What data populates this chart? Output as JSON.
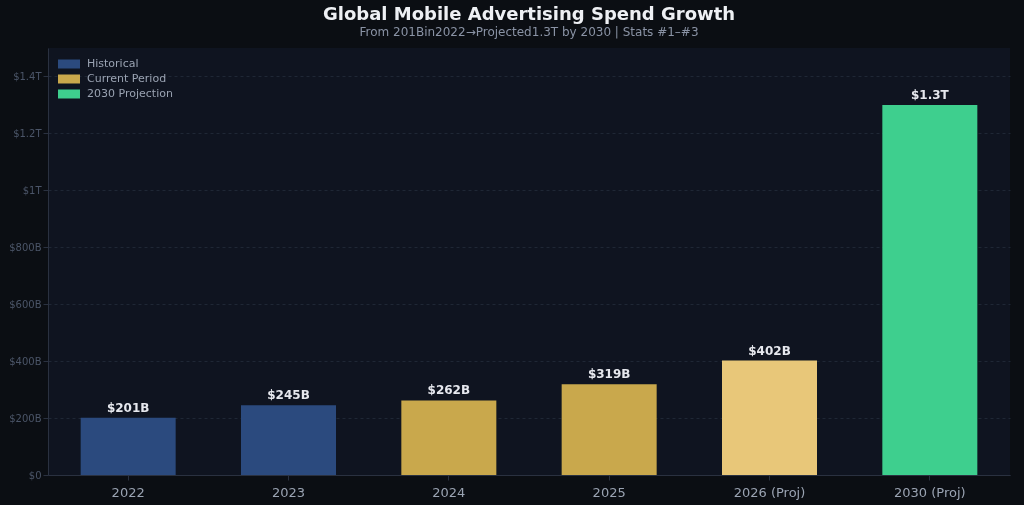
{
  "chart_data": {
    "type": "bar",
    "title": "Global Mobile Advertising Spend Growth",
    "subtitle": "From 201Bin2022→Projected1.3T by 2030  |  Stats #1–#3",
    "categories": [
      "2022",
      "2023",
      "2024",
      "2025",
      "2026 (Proj)",
      "2030 (Proj)"
    ],
    "series": [
      {
        "name": "Historical",
        "color": "#2b4a7e",
        "values": [
          201000000000,
          245000000000,
          null,
          null,
          null,
          null
        ],
        "value_labels": [
          "$201B",
          "$245B",
          null,
          null,
          null,
          null
        ]
      },
      {
        "name": "Current Period",
        "color": "#c9a84c",
        "colors": [
          null,
          null,
          "#c9a84c",
          "#c9a84c",
          "#e8c779",
          null
        ],
        "values": [
          null,
          null,
          262000000000,
          319000000000,
          402000000000,
          null
        ],
        "value_labels": [
          null,
          null,
          "$262B",
          "$319B",
          "$402B",
          null
        ]
      },
      {
        "name": "2030 Projection",
        "color": "#3ecf8e",
        "values": [
          null,
          null,
          null,
          null,
          null,
          1300000000000
        ],
        "value_labels": [
          null,
          null,
          null,
          null,
          null,
          "$1.3T"
        ]
      }
    ],
    "ylim": [
      0,
      1500000000000
    ],
    "yticks": [
      {
        "value": 0,
        "label": "$0"
      },
      {
        "value": 200000000000,
        "label": "$200B"
      },
      {
        "value": 400000000000,
        "label": "$400B"
      },
      {
        "value": 600000000000,
        "label": "$600B"
      },
      {
        "value": 800000000000,
        "label": "$800B"
      },
      {
        "value": 1000000000000,
        "label": "$1T"
      },
      {
        "value": 1200000000000,
        "label": "$1.2T"
      },
      {
        "value": 1400000000000,
        "label": "$1.4T"
      }
    ],
    "grid": "y",
    "legend": "top left"
  }
}
